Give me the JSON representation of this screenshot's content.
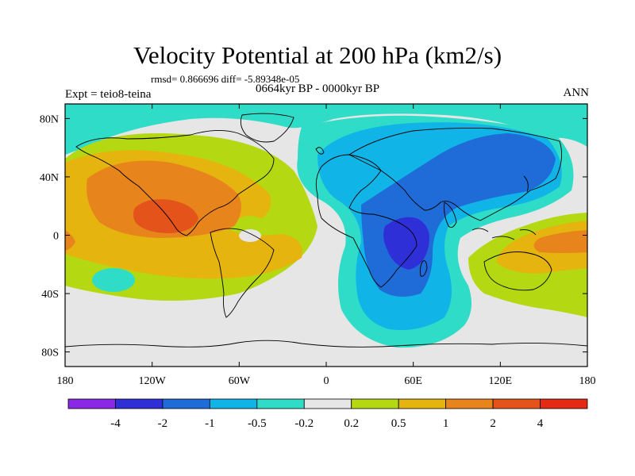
{
  "header": {
    "title": "Velocity Potential at 200 hPa (km2/s)",
    "stats": "rmsd= 0.866696 diff= -5.89348e-05",
    "subtitle": "0664kyr BP - 0000kyr BP",
    "left_label": "Expt = teio8-teina",
    "right_label": "ANN"
  },
  "chart_data": {
    "type": "heatmap",
    "title": "Velocity Potential at 200 hPa (km2/s)",
    "projection": "cylindrical-equidistant",
    "xlim": [
      -180,
      180
    ],
    "ylim": [
      -90,
      90
    ],
    "x_ticks": [
      -180,
      -120,
      -60,
      0,
      60,
      120,
      180
    ],
    "x_tick_labels": [
      "180",
      "120W",
      "60W",
      "0",
      "60E",
      "120E",
      "180"
    ],
    "y_ticks": [
      80,
      40,
      0,
      -40,
      -80
    ],
    "y_tick_labels": [
      "80N",
      "40N",
      "0",
      "40S",
      "80S"
    ],
    "levels": [
      -4,
      -2,
      -1,
      -0.5,
      -0.2,
      0.2,
      0.5,
      1,
      2,
      4
    ],
    "level_labels": [
      "-4",
      "-2",
      "-1",
      "-0.5",
      "-0.2",
      "0.2",
      "0.5",
      "1",
      "2",
      "4"
    ],
    "colors": [
      "#8a28e6",
      "#2f2fd8",
      "#1f6cd8",
      "#11b4e6",
      "#2edcc8",
      "#e6e6e6",
      "#b4d812",
      "#e6b40e",
      "#e8841c",
      "#e4541a",
      "#e42a14"
    ],
    "features": [
      {
        "name": "eastern-pacific-positive",
        "lon": -125,
        "lat": 10,
        "max": 4
      },
      {
        "name": "east-africa-negative",
        "lon": 50,
        "lat": -8,
        "min": -4
      },
      {
        "name": "asia-indian-ocean-negative",
        "lon": 75,
        "lat": 35,
        "min": -2
      },
      {
        "name": "west-pacific-positive",
        "lon": 150,
        "lat": -5,
        "max": 2
      },
      {
        "name": "south-pacific-negative",
        "lon": -140,
        "lat": -35,
        "min": -0.5
      }
    ]
  }
}
